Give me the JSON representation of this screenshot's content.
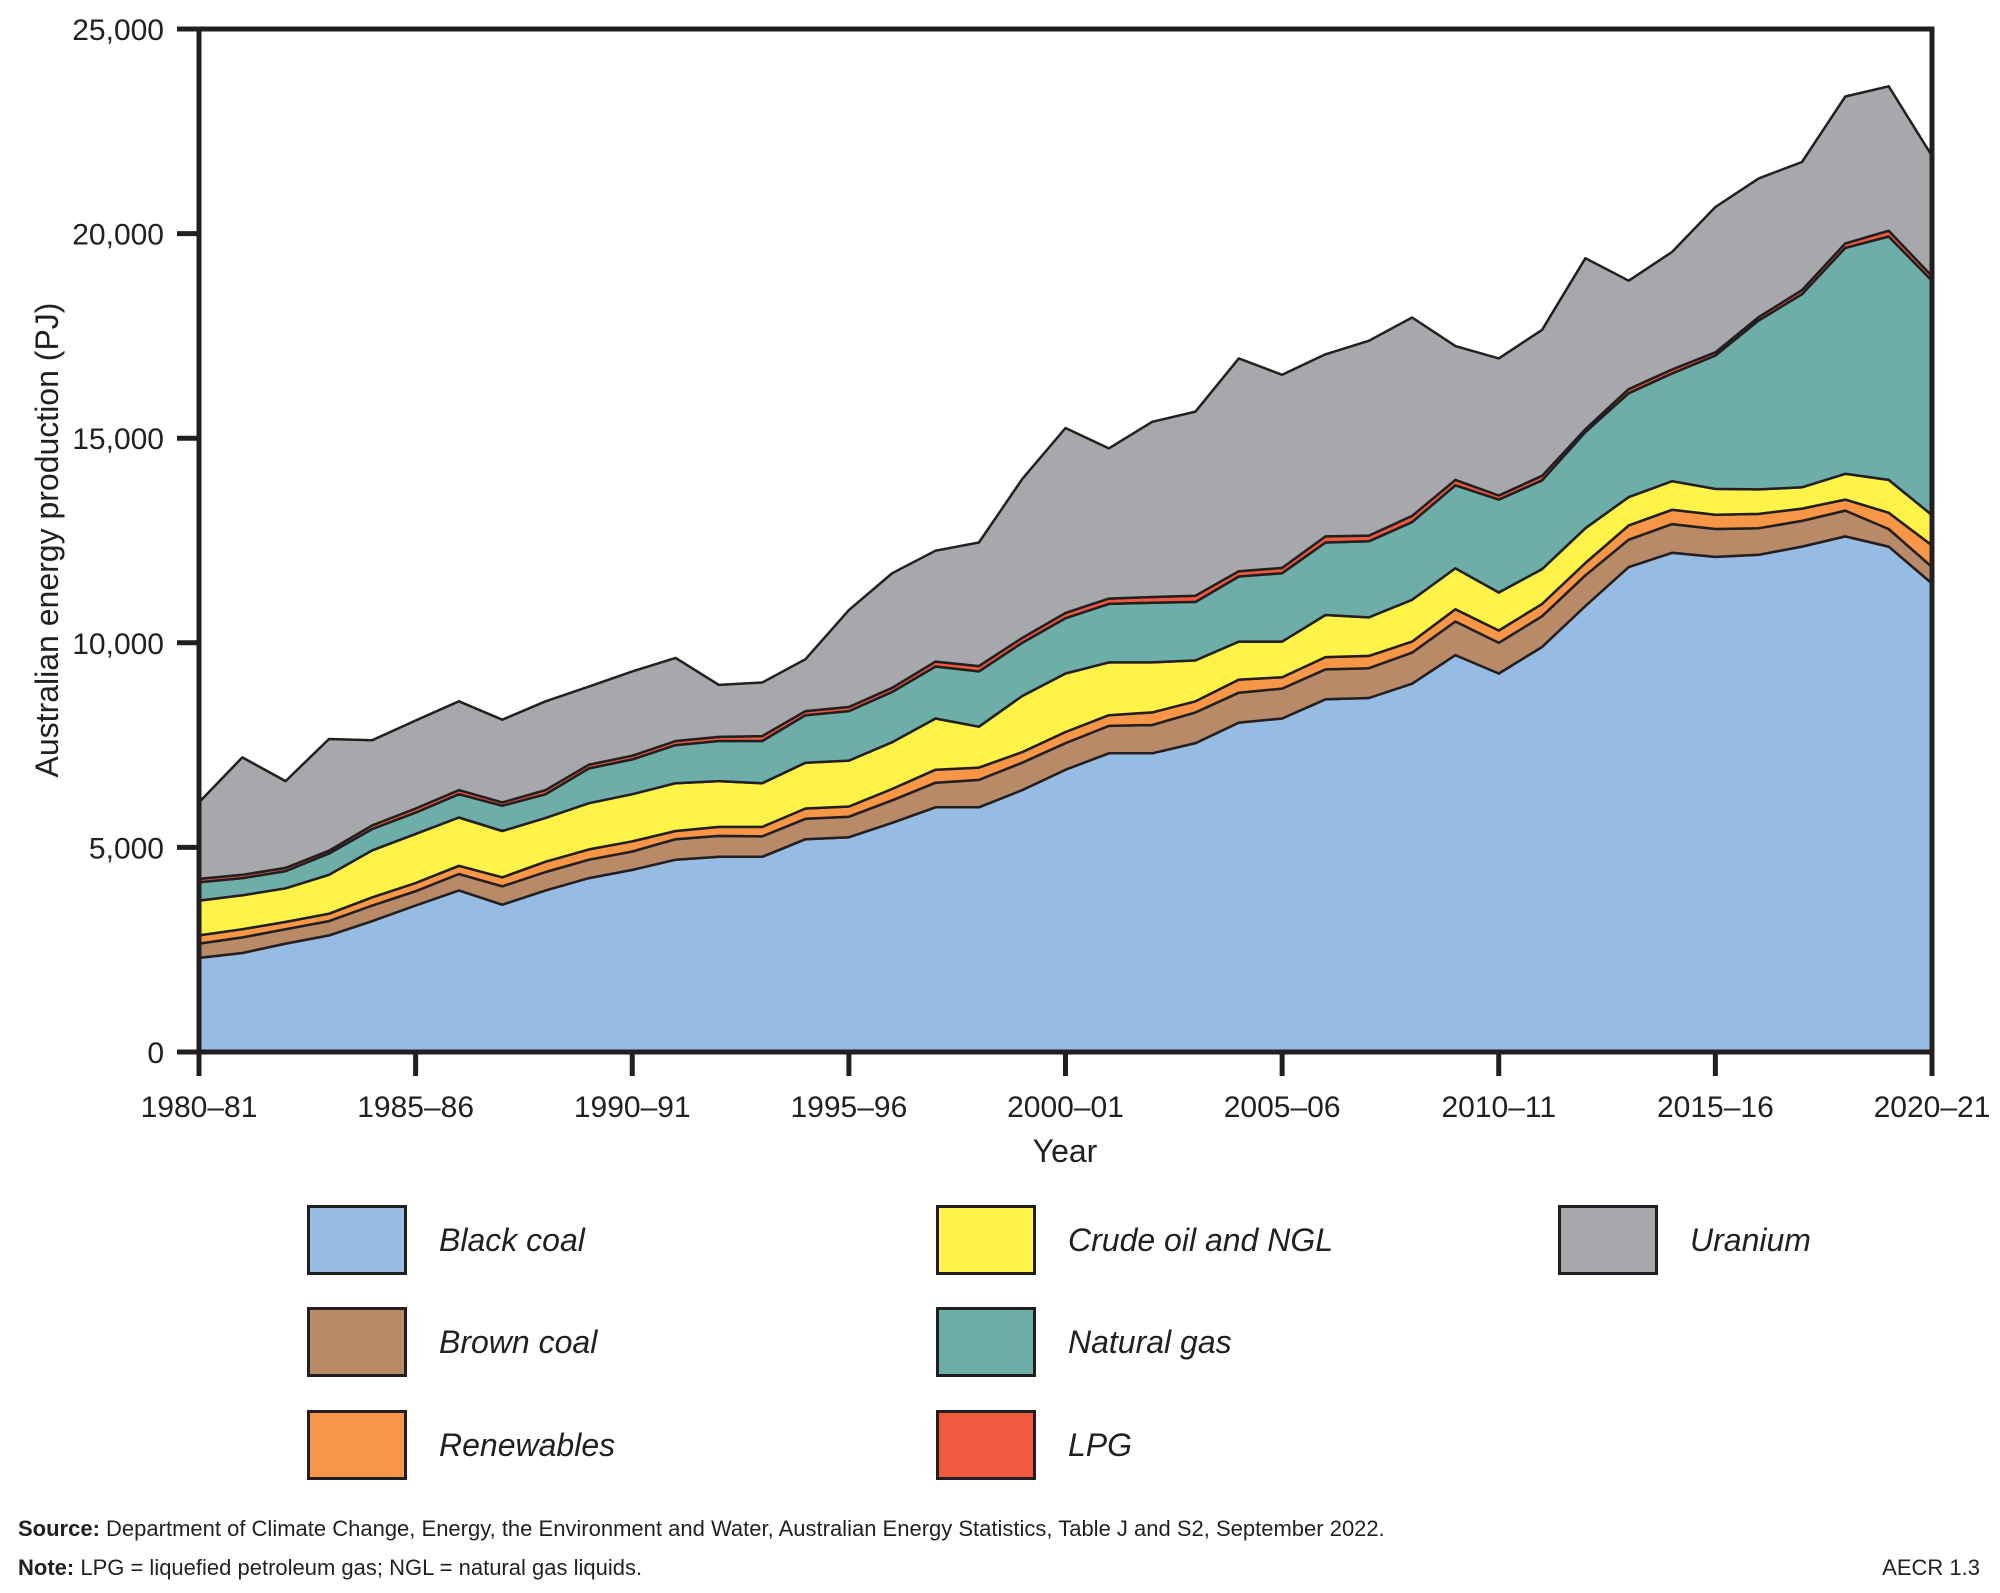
{
  "chart_data": {
    "type": "area",
    "stacked": true,
    "title": "",
    "xlabel": "Year",
    "ylabel": "Australian energy production (PJ)",
    "ylim": [
      0,
      25000
    ],
    "yticks": [
      0,
      5000,
      10000,
      15000,
      20000,
      25000
    ],
    "ytick_labels": [
      "0",
      "5,000",
      "10,000",
      "15,000",
      "20,000",
      "25,000"
    ],
    "xtick_labels": [
      "1980–81",
      "1985–86",
      "1990–91",
      "1995–96",
      "2000–01",
      "2005–06",
      "2010–11",
      "2015–16",
      "2020–21"
    ],
    "xtick_every": 5,
    "grid": false,
    "legend_position": "bottom",
    "x": [
      "1980-81",
      "1981-82",
      "1982-83",
      "1983-84",
      "1984-85",
      "1985-86",
      "1986-87",
      "1987-88",
      "1988-89",
      "1989-90",
      "1990-91",
      "1991-92",
      "1992-93",
      "1993-94",
      "1994-95",
      "1995-96",
      "1996-97",
      "1997-98",
      "1998-99",
      "1999-00",
      "2000-01",
      "2001-02",
      "2002-03",
      "2003-04",
      "2004-05",
      "2005-06",
      "2006-07",
      "2007-08",
      "2008-09",
      "2009-10",
      "2010-11",
      "2011-12",
      "2012-13",
      "2013-14",
      "2014-15",
      "2015-16",
      "2016-17",
      "2017-18",
      "2018-19",
      "2019-20",
      "2020-21"
    ],
    "series": [
      {
        "name": "Black coal",
        "color": "#96bce3",
        "values": [
          2300,
          2420,
          2650,
          2850,
          3200,
          3580,
          3950,
          3600,
          3950,
          4250,
          4450,
          4700,
          4770,
          4770,
          5200,
          5250,
          5600,
          5980,
          5980,
          6400,
          6900,
          7300,
          7300,
          7550,
          8050,
          8150,
          8620,
          8650,
          9000,
          9700,
          9250,
          9900,
          10900,
          11850,
          12200,
          12100,
          12150,
          12350,
          12600,
          12350,
          11450
        ]
      },
      {
        "name": "Brown coal",
        "color": "#b98a68",
        "values": [
          350,
          380,
          350,
          350,
          380,
          350,
          400,
          450,
          450,
          450,
          450,
          500,
          510,
          500,
          500,
          500,
          550,
          600,
          670,
          670,
          650,
          670,
          690,
          750,
          730,
          730,
          730,
          730,
          760,
          820,
          750,
          750,
          750,
          670,
          700,
          680,
          650,
          630,
          630,
          430,
          400
        ]
      },
      {
        "name": "Renewables",
        "color": "#f79646",
        "values": [
          200,
          200,
          180,
          180,
          200,
          200,
          200,
          220,
          250,
          250,
          250,
          200,
          220,
          230,
          250,
          250,
          280,
          320,
          300,
          260,
          270,
          260,
          310,
          270,
          320,
          280,
          300,
          300,
          270,
          300,
          300,
          300,
          300,
          350,
          350,
          350,
          350,
          300,
          270,
          400,
          530
        ]
      },
      {
        "name": "Crude oil and NGL",
        "color": "#fff34a",
        "values": [
          850,
          830,
          820,
          950,
          1150,
          1200,
          1180,
          1130,
          1070,
          1130,
          1150,
          1170,
          1120,
          1070,
          1120,
          1120,
          1140,
          1250,
          1000,
          1370,
          1430,
          1290,
          1220,
          1000,
          930,
          870,
          1030,
          940,
          1020,
          1000,
          930,
          850,
          850,
          690,
          700,
          630,
          600,
          520,
          630,
          800,
          740
        ]
      },
      {
        "name": "Natural gas",
        "color": "#6daea8",
        "values": [
          450,
          420,
          420,
          520,
          520,
          520,
          570,
          620,
          580,
          850,
          850,
          930,
          980,
          1030,
          1160,
          1210,
          1230,
          1270,
          1350,
          1300,
          1350,
          1430,
          1460,
          1430,
          1590,
          1670,
          1770,
          1860,
          1900,
          2030,
          2270,
          2170,
          2350,
          2540,
          2630,
          3260,
          4130,
          4720,
          5520,
          5950,
          5730
        ]
      },
      {
        "name": "LPG",
        "color": "#f15a3f",
        "values": [
          80,
          80,
          80,
          70,
          90,
          100,
          100,
          80,
          100,
          90,
          90,
          100,
          100,
          120,
          100,
          100,
          100,
          120,
          130,
          120,
          130,
          130,
          140,
          150,
          130,
          130,
          150,
          140,
          150,
          130,
          100,
          110,
          70,
          100,
          100,
          80,
          80,
          100,
          110,
          140,
          110
        ]
      },
      {
        "name": "Uranium",
        "color": "#a7a8ab",
        "values": [
          1870,
          2870,
          2120,
          2730,
          2080,
          2150,
          2170,
          2020,
          2170,
          1910,
          2060,
          2030,
          1270,
          1310,
          1270,
          2370,
          2800,
          2710,
          3020,
          3880,
          4520,
          3670,
          4280,
          4500,
          5200,
          4720,
          4450,
          4760,
          4850,
          3270,
          3350,
          3570,
          4180,
          2650,
          2870,
          3550,
          3390,
          3130,
          3590,
          3530,
          2940
        ]
      }
    ]
  },
  "legend": {
    "items": [
      {
        "label": "Black coal",
        "color": "#96bce3"
      },
      {
        "label": "Brown coal",
        "color": "#b98a68"
      },
      {
        "label": "Renewables",
        "color": "#f79646"
      },
      {
        "label": "Crude oil and NGL",
        "color": "#fff34a"
      },
      {
        "label": "Natural gas",
        "color": "#6daea8"
      },
      {
        "label": "LPG",
        "color": "#f15a3f"
      },
      {
        "label": "Uranium",
        "color": "#a7a8ab"
      }
    ]
  },
  "footer": {
    "source_label": "Source:",
    "source_text": " Department of Climate Change, Energy, the Environment and Water, Australian Energy Statistics, Table J and S2, September 2022.",
    "note_label": "Note:",
    "note_text": " LPG = liquefied petroleum gas; NGL = natural gas liquids.",
    "figure_id": "AECR 1.3"
  }
}
